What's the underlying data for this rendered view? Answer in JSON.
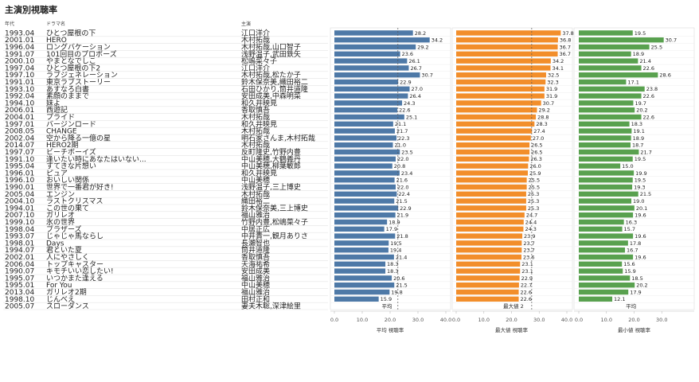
{
  "page": {
    "title": "主演別視聴率"
  },
  "columns": {
    "year": "年代",
    "drama": "ドラマ名",
    "cast": "主演"
  },
  "colors": {
    "avg": "#4e79a7",
    "max": "#f28e2b",
    "min": "#59a14f",
    "ref": "#555555"
  },
  "chart_data": {
    "type": "bar",
    "title": "主演別視聴率",
    "rows": [
      {
        "year": "1993.04",
        "drama": "ひとつ屋根の下",
        "cast": "江口洋介",
        "avg": 28.2,
        "max": 37.8,
        "min": 19.5
      },
      {
        "year": "2001.01",
        "drama": "HERO",
        "cast": "木村拓哉",
        "avg": 34.2,
        "max": 36.8,
        "min": 30.7
      },
      {
        "year": "1996.04",
        "drama": "ロングバケーション",
        "cast": "木村拓哉,山口智子",
        "avg": 29.2,
        "max": 36.7,
        "min": 25.5
      },
      {
        "year": "1991.07",
        "drama": "101回目のプロポーズ",
        "cast": "浅野温子,武田鉄矢",
        "avg": 23.6,
        "max": 36.7,
        "min": 18.9
      },
      {
        "year": "2000.10",
        "drama": "やまとなでしこ",
        "cast": "松嶋菜々子",
        "avg": 26.1,
        "max": 34.2,
        "min": 21.4
      },
      {
        "year": "1997.04",
        "drama": "ひとつ屋根の下2",
        "cast": "江口洋介",
        "avg": 26.7,
        "max": 34.1,
        "min": 22.6
      },
      {
        "year": "1997.10",
        "drama": "ラブジェネレーション",
        "cast": "木村拓哉,松たか子",
        "avg": 30.7,
        "max": 32.5,
        "min": 28.6
      },
      {
        "year": "1991.01",
        "drama": "東京ラブストーリー",
        "cast": "鈴木保奈美,織田裕二",
        "avg": 22.9,
        "max": 32.3,
        "min": 17.1
      },
      {
        "year": "1993.10",
        "drama": "あすなろ白書",
        "cast": "石田ひかり,筒井道隆",
        "avg": 27.0,
        "max": 31.9,
        "min": 23.8
      },
      {
        "year": "1992.04",
        "drama": "素顔のままで",
        "cast": "安田成美,中森明菜",
        "avg": 26.4,
        "max": 31.9,
        "min": 22.6
      },
      {
        "year": "1994.10",
        "drama": "妹よ",
        "cast": "和久井映見",
        "avg": 24.3,
        "max": 30.7,
        "min": 19.7
      },
      {
        "year": "2006.01",
        "drama": "西遊記",
        "cast": "香取慎吾",
        "avg": 22.6,
        "max": 29.2,
        "min": 20.2
      },
      {
        "year": "2004.01",
        "drama": "プライド",
        "cast": "木村拓哉",
        "avg": 25.1,
        "max": 28.8,
        "min": 22.6
      },
      {
        "year": "1997.01",
        "drama": "バージンロード",
        "cast": "和久井映見",
        "avg": 21.1,
        "max": 28.3,
        "min": 18.3
      },
      {
        "year": "2008.05",
        "drama": "CHANGE",
        "cast": "木村拓哉",
        "avg": 21.7,
        "max": 27.4,
        "min": 19.1
      },
      {
        "year": "2002.04",
        "drama": "空から降る一億の星",
        "cast": "明石家さんま,木村拓哉",
        "avg": 22.3,
        "max": 27.0,
        "min": 18.9
      },
      {
        "year": "2014.07",
        "drama": "HERO2期",
        "cast": "木村拓哉",
        "avg": 21.0,
        "max": 26.5,
        "min": 18.7
      },
      {
        "year": "1997.07",
        "drama": "ビーチボーイズ",
        "cast": "反町隆史,竹野内豊",
        "avg": 23.5,
        "max": 26.5,
        "min": 21.7
      },
      {
        "year": "1991.10",
        "drama": "逢いたい時にあなたはいない...",
        "cast": "中山美穂,大鶴義丹",
        "avg": 22.0,
        "max": 26.3,
        "min": 19.5
      },
      {
        "year": "1995.04",
        "drama": "すてきな片想い",
        "cast": "中山美穂,柳葉敏郎",
        "avg": 20.8,
        "max": 26.0,
        "min": 15.0
      },
      {
        "year": "1996.01",
        "drama": "ピュア",
        "cast": "和久井映見",
        "avg": 23.4,
        "max": 25.9,
        "min": 19.9
      },
      {
        "year": "1996.10",
        "drama": "おいしい関係",
        "cast": "中山美穂",
        "avg": 21.6,
        "max": 25.5,
        "min": 19.5
      },
      {
        "year": "1990.01",
        "drama": "世界で一番君が好き!",
        "cast": "浅野温子,三上博史",
        "avg": 22.0,
        "max": 25.5,
        "min": 19.3
      },
      {
        "year": "2005.04",
        "drama": "エンジン",
        "cast": "木村拓哉",
        "avg": 22.4,
        "max": 25.3,
        "min": 21.5
      },
      {
        "year": "2004.10",
        "drama": "ラストクリスマス",
        "cast": "織田裕二",
        "avg": 21.5,
        "max": 25.3,
        "min": 19.0
      },
      {
        "year": "1994.01",
        "drama": "この世の果て",
        "cast": "鈴木保奈美,三上博史",
        "avg": 22.9,
        "max": 25.3,
        "min": 20.1
      },
      {
        "year": "2007.10",
        "drama": "ガリレオ",
        "cast": "福山雅治",
        "avg": 21.9,
        "max": 24.7,
        "min": 19.6
      },
      {
        "year": "1999.10",
        "drama": "氷の世界",
        "cast": "竹野内豊,松嶋菜々子",
        "avg": 18.9,
        "max": 24.4,
        "min": 16.3
      },
      {
        "year": "1998.04",
        "drama": "ブラザーズ",
        "cast": "中居正広",
        "avg": 17.9,
        "max": 24.3,
        "min": 15.7
      },
      {
        "year": "1993.07",
        "drama": "じゃじゃ馬ならし",
        "cast": "中井貴一,観月ありさ",
        "avg": 21.8,
        "max": 23.9,
        "min": 19.6
      },
      {
        "year": "1998.01",
        "drama": "Days",
        "cast": "長瀬智也",
        "avg": 19.5,
        "max": 23.7,
        "min": 17.8
      },
      {
        "year": "1994.07",
        "drama": "君といた夏",
        "cast": "筒井道隆",
        "avg": 19.4,
        "max": 23.7,
        "min": 16.7
      },
      {
        "year": "2002.01",
        "drama": "人にやさしく",
        "cast": "香取慎吾",
        "avg": 21.4,
        "max": 23.6,
        "min": 19.6
      },
      {
        "year": "2006.04",
        "drama": "トップキャスター",
        "cast": "天海祐希",
        "avg": 18.3,
        "max": 23.1,
        "min": 15.6
      },
      {
        "year": "1990.07",
        "drama": "キモチいい恋したい!",
        "cast": "安田成美",
        "avg": 18.3,
        "max": 23.1,
        "min": 15.9
      },
      {
        "year": "1995.07",
        "drama": "いつかまた逢える",
        "cast": "福山雅治",
        "avg": 20.6,
        "max": 22.9,
        "min": 18.5
      },
      {
        "year": "1995.01",
        "drama": "For You",
        "cast": "中山美穂",
        "avg": 21.5,
        "max": 22.7,
        "min": 20.2
      },
      {
        "year": "2013.04",
        "drama": "ガリレオ2期",
        "cast": "福山雅治",
        "avg": 19.8,
        "max": 22.6,
        "min": 17.9
      },
      {
        "year": "1998.10",
        "drama": "じんべえ",
        "cast": "田村正和",
        "avg": 15.9,
        "max": 22.6,
        "min": 12.1
      },
      {
        "year": "2005.07",
        "drama": "スローダンス",
        "cast": "妻夫木聡,深津絵里",
        "avg": null,
        "max": null,
        "min": null,
        "avg_text": "平均",
        "max_text": "最大値 2",
        "min_text": "平均"
      }
    ],
    "panels": [
      {
        "key": "avg",
        "axis_title": "平均 視聴率",
        "xlim": [
          0,
          40
        ],
        "ticks": [
          "0.0",
          "10.0",
          "20.0",
          "30.0",
          "40.0"
        ],
        "tick_values": [
          0,
          10,
          20,
          30,
          40
        ],
        "ref": 22.8
      },
      {
        "key": "max",
        "axis_title": "最大値 視聴率",
        "xlim": [
          0,
          40
        ],
        "ticks": [
          "0.0",
          "10.0",
          "20.0",
          "30.0",
          "40.0"
        ],
        "tick_values": [
          0,
          10,
          20,
          30,
          40
        ],
        "ref": 27.3
      },
      {
        "key": "min",
        "axis_title": "最小値 視聴率",
        "xlim": [
          0,
          40
        ],
        "ticks": [
          "0.0",
          "10.0",
          "20.0",
          "30.0"
        ],
        "tick_values": [
          0,
          10,
          20,
          30
        ],
        "ref": null
      }
    ]
  }
}
